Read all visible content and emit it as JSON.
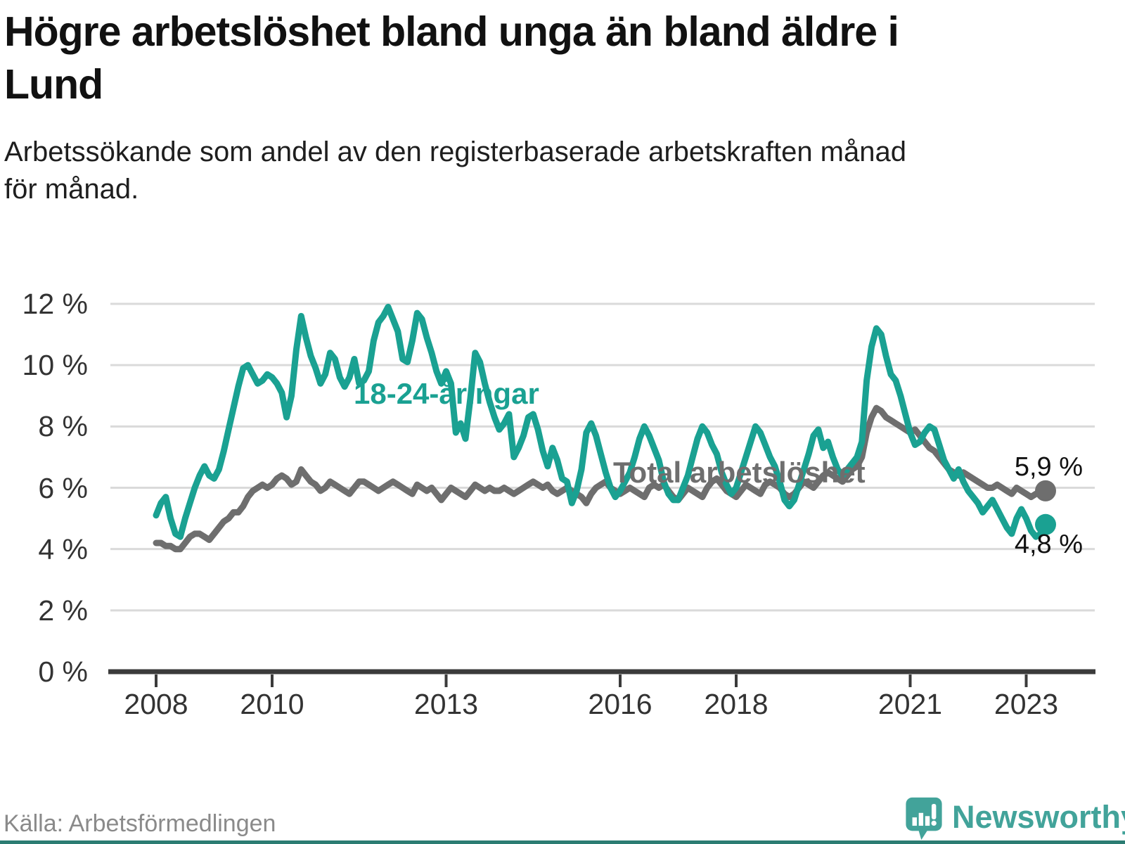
{
  "header": {
    "title_lines": [
      "Högre arbetslöshet bland unga än bland äldre i",
      "Lund"
    ],
    "subtitle_lines": [
      "Arbetssökande som andel av den registerbaserade arbetskraften månad",
      "för månad."
    ]
  },
  "footer": {
    "source": "Källa: Arbetsförmedlingen",
    "brand": "Newsworthy"
  },
  "colors": {
    "youth_line": "#1aa192",
    "total_line": "#6e6e6e",
    "grid": "#dadada",
    "axis": "#3b3b3b",
    "tick_text": "#333333",
    "value_text": "#111111",
    "brand_teal": "#42a39a",
    "bottom_bar": "#2b7c72"
  },
  "chart_data": {
    "type": "line",
    "title": "Högre arbetslöshet bland unga än bland äldre i Lund",
    "xlabel": "",
    "ylabel": "",
    "unit": "%",
    "start_month": "2008-01",
    "end_month": "2023-05",
    "points_per_year": 12,
    "ylim": [
      0,
      12
    ],
    "grid": true,
    "y_ticks": [
      "0 %",
      "2 %",
      "4 %",
      "6 %",
      "8 %",
      "10 %",
      "12 %"
    ],
    "x_ticks": [
      2008,
      2010,
      2013,
      2016,
      2018,
      2021,
      2023
    ],
    "series": [
      {
        "name": "18-24-åringar",
        "color": "#1aa192",
        "end_label": "4,8 %",
        "end_value": 4.8,
        "values": [
          5.1,
          5.5,
          5.7,
          5.0,
          4.5,
          4.4,
          5.0,
          5.5,
          6.0,
          6.4,
          6.7,
          6.4,
          6.3,
          6.6,
          7.2,
          7.9,
          8.6,
          9.3,
          9.9,
          10.0,
          9.7,
          9.4,
          9.5,
          9.7,
          9.6,
          9.4,
          9.1,
          8.3,
          9.0,
          10.5,
          11.6,
          10.9,
          10.3,
          9.9,
          9.4,
          9.7,
          10.4,
          10.2,
          9.6,
          9.3,
          9.6,
          10.2,
          9.4,
          9.5,
          9.8,
          10.8,
          11.4,
          11.6,
          11.9,
          11.5,
          11.1,
          10.2,
          10.1,
          10.8,
          11.7,
          11.5,
          10.9,
          10.4,
          9.8,
          9.4,
          9.8,
          9.4,
          7.8,
          8.1,
          7.6,
          8.9,
          10.4,
          10.1,
          9.4,
          8.8,
          8.3,
          7.9,
          8.1,
          8.4,
          7.0,
          7.3,
          7.7,
          8.3,
          8.4,
          7.9,
          7.2,
          6.7,
          7.3,
          6.9,
          6.3,
          6.2,
          5.5,
          5.9,
          6.6,
          7.8,
          8.1,
          7.7,
          7.1,
          6.5,
          6.0,
          5.7,
          5.9,
          6.2,
          6.5,
          7.0,
          7.6,
          8.0,
          7.7,
          7.3,
          6.9,
          6.2,
          5.8,
          5.6,
          5.6,
          6.0,
          6.4,
          7.0,
          7.6,
          8.0,
          7.8,
          7.4,
          7.1,
          6.5,
          6.1,
          5.8,
          6.0,
          6.5,
          7.0,
          7.5,
          8.0,
          7.8,
          7.4,
          7.0,
          6.7,
          6.2,
          5.6,
          5.4,
          5.6,
          6.1,
          6.6,
          7.1,
          7.7,
          7.9,
          7.3,
          7.5,
          7.0,
          6.6,
          6.4,
          6.6,
          6.8,
          7.0,
          7.5,
          9.5,
          10.6,
          11.2,
          11.0,
          10.3,
          9.7,
          9.5,
          9.0,
          8.4,
          7.8,
          7.4,
          7.5,
          7.8,
          8.0,
          7.9,
          7.4,
          6.9,
          6.6,
          6.3,
          6.6,
          6.2,
          5.9,
          5.7,
          5.5,
          5.2,
          5.4,
          5.6,
          5.3,
          5.0,
          4.7,
          4.5,
          5.0,
          5.3,
          5.0,
          4.6,
          4.4,
          4.5,
          4.8
        ]
      },
      {
        "name": "Total arbetslöshet",
        "color": "#6e6e6e",
        "end_label": "5,9 %",
        "end_value": 5.9,
        "values": [
          4.2,
          4.2,
          4.1,
          4.1,
          4.0,
          4.0,
          4.2,
          4.4,
          4.5,
          4.5,
          4.4,
          4.3,
          4.5,
          4.7,
          4.9,
          5.0,
          5.2,
          5.2,
          5.4,
          5.7,
          5.9,
          6.0,
          6.1,
          6.0,
          6.1,
          6.3,
          6.4,
          6.3,
          6.1,
          6.2,
          6.6,
          6.4,
          6.2,
          6.1,
          5.9,
          6.0,
          6.2,
          6.1,
          6.0,
          5.9,
          5.8,
          6.0,
          6.2,
          6.2,
          6.1,
          6.0,
          5.9,
          6.0,
          6.1,
          6.2,
          6.1,
          6.0,
          5.9,
          5.8,
          6.1,
          6.0,
          5.9,
          6.0,
          5.8,
          5.6,
          5.8,
          6.0,
          5.9,
          5.8,
          5.7,
          5.9,
          6.1,
          6.0,
          5.9,
          6.0,
          5.9,
          5.9,
          6.0,
          5.9,
          5.8,
          5.9,
          6.0,
          6.1,
          6.2,
          6.1,
          6.0,
          6.1,
          5.9,
          5.8,
          5.9,
          6.0,
          5.9,
          5.8,
          5.7,
          5.5,
          5.8,
          6.0,
          6.1,
          6.2,
          6.0,
          5.9,
          5.8,
          5.9,
          6.0,
          5.9,
          5.8,
          5.7,
          6.0,
          6.1,
          6.0,
          6.1,
          5.9,
          5.7,
          5.6,
          5.8,
          6.0,
          5.9,
          5.8,
          5.7,
          6.0,
          6.2,
          6.3,
          6.1,
          5.9,
          5.8,
          5.7,
          5.9,
          6.1,
          6.0,
          5.9,
          5.8,
          6.1,
          6.2,
          6.1,
          6.0,
          5.8,
          5.7,
          5.8,
          6.0,
          6.2,
          6.1,
          6.0,
          6.2,
          6.4,
          6.5,
          6.4,
          6.3,
          6.2,
          6.4,
          6.6,
          6.7,
          7.0,
          7.8,
          8.3,
          8.6,
          8.5,
          8.3,
          8.2,
          8.1,
          8.0,
          7.9,
          7.8,
          7.9,
          7.7,
          7.5,
          7.3,
          7.2,
          7.0,
          6.8,
          6.6,
          6.5,
          6.4,
          6.5,
          6.4,
          6.3,
          6.2,
          6.1,
          6.0,
          6.0,
          6.1,
          6.0,
          5.9,
          5.8,
          6.0,
          5.9,
          5.8,
          5.7,
          5.8,
          5.8,
          5.9
        ]
      }
    ]
  }
}
